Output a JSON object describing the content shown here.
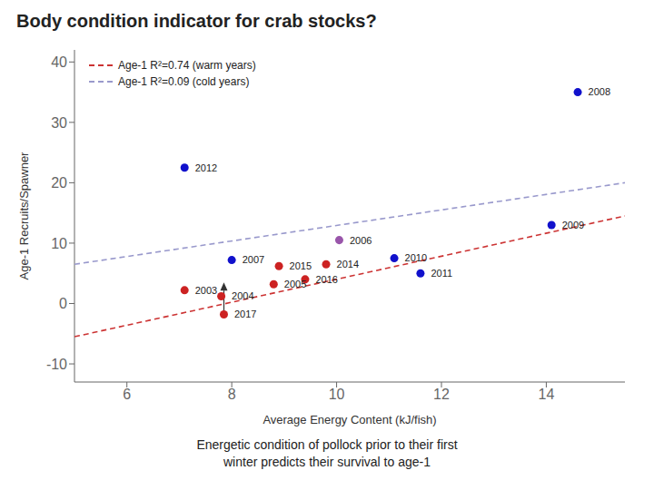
{
  "chart_data": {
    "type": "scatter",
    "title": "Body condition indicator for crab stocks?",
    "subtitle": "Energetic condition of pollock prior to their first\nwinter predicts their survival to age-1",
    "xlabel": "Average Energy Content (kJ/fish)",
    "ylabel": "Age-1 Recruits/Spawner",
    "xlim": [
      5.0,
      15.5
    ],
    "ylim": [
      -13,
      42
    ],
    "xticks": [
      6,
      8,
      10,
      12,
      14
    ],
    "yticks": [
      -10,
      0,
      10,
      20,
      30,
      40
    ],
    "grid": false,
    "legend": "upper left",
    "series": [
      {
        "type": "line",
        "name": "Age-1 R²=0.74 (warm years)",
        "color": "#CC3333",
        "line_style": "dashed",
        "x": [
          5.0,
          15.5
        ],
        "y": [
          -5.5,
          14.5
        ]
      },
      {
        "type": "line",
        "name": "Age-1 R²=0.09 (cold years)",
        "color": "#9999CC",
        "line_style": "dashed",
        "x": [
          5.0,
          15.5
        ],
        "y": [
          6.5,
          20.0
        ]
      },
      {
        "type": "scatter",
        "color": "#1111CC",
        "marker": "circle",
        "x": [
          14.6,
          14.1,
          11.1,
          11.6,
          8.0,
          7.1
        ],
        "y": [
          35,
          13.0,
          7.5,
          5.0,
          7.2,
          22.5
        ],
        "labels": [
          "2008",
          "2009",
          "2010",
          "2011",
          "2007",
          "2012"
        ]
      },
      {
        "type": "scatter",
        "color": "#CC2222",
        "marker": "circle",
        "x": [
          7.1,
          7.8,
          8.8,
          9.4,
          8.9,
          7.85,
          9.8
        ],
        "y": [
          2.2,
          1.2,
          3.2,
          4.0,
          6.2,
          -1.8,
          6.5
        ],
        "labels": [
          "2003",
          "2004",
          "2005",
          "2016",
          "2015",
          "2017",
          "2014"
        ]
      },
      {
        "type": "scatter",
        "color": "#9955AA",
        "marker": "circle",
        "x": [
          10.05
        ],
        "y": [
          10.5
        ],
        "labels": [
          "2006"
        ]
      }
    ],
    "annotations": [
      {
        "type": "arrow",
        "x": 7.85,
        "y_start": -1.5,
        "y_end": 3.5
      }
    ]
  }
}
